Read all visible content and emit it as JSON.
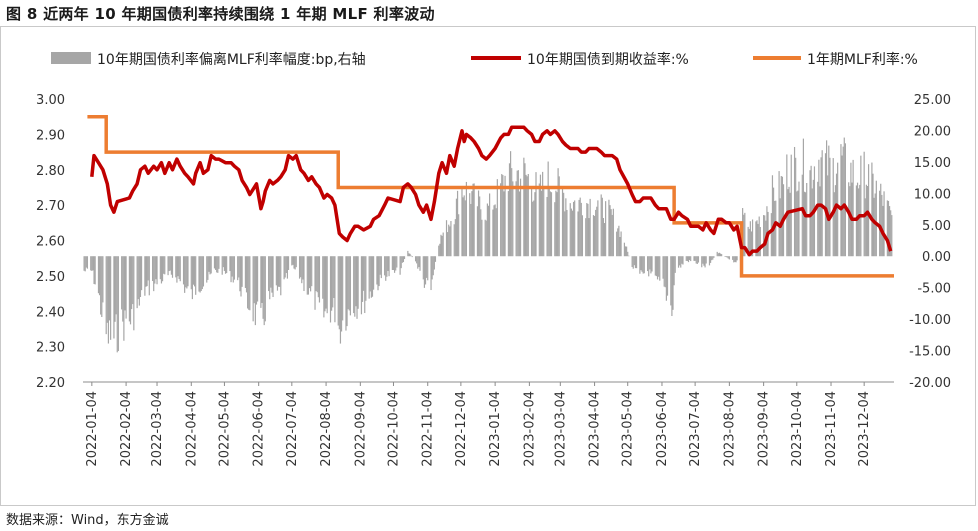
{
  "figure_title": "图 8  近两年 10 年期国债利率持续围绕 1 年期 MLF 利率波动",
  "source": "数据来源：Wind，东方金诚",
  "chart_data": {
    "type": "bar+line",
    "legend": [
      {
        "name": "10年期国债利率偏离MLF利率幅度:bp,右轴",
        "color": "#a6a6a6"
      },
      {
        "name": "10年期国债到期收益率:%",
        "color": "#c00000"
      },
      {
        "name": "1年期MLF利率:%",
        "color": "#ed7d31"
      }
    ],
    "legend_position": "top",
    "x_range": [
      "2021-12-27",
      "2023-12-31"
    ],
    "x_tick_labels": [
      "2022-01-04",
      "2022-02-04",
      "2022-03-04",
      "2022-04-04",
      "2022-05-04",
      "2022-06-04",
      "2022-07-04",
      "2022-08-04",
      "2022-09-04",
      "2022-10-04",
      "2022-11-04",
      "2022-12-04",
      "2023-01-04",
      "2023-02-04",
      "2023-03-04",
      "2023-04-04",
      "2023-05-04",
      "2023-06-04",
      "2023-07-04",
      "2023-08-04",
      "2023-09-04",
      "2023-10-04",
      "2023-11-04",
      "2023-12-04"
    ],
    "y_left": {
      "min": 2.2,
      "max": 3.0,
      "ticks": [
        "2.20",
        "2.30",
        "2.40",
        "2.50",
        "2.60",
        "2.70",
        "2.80",
        "2.90",
        "3.00"
      ]
    },
    "y_right": {
      "min": -20,
      "max": 25,
      "ticks": [
        "-20.00",
        "-15.00",
        "-10.00",
        "-5.00",
        "0.00",
        "5.00",
        "10.00",
        "15.00",
        "20.00",
        "25.00"
      ]
    },
    "yield_10y": [
      [
        "2022-01-04",
        2.78
      ],
      [
        "2022-01-06",
        2.84
      ],
      [
        "2022-01-10",
        2.82
      ],
      [
        "2022-01-14",
        2.8
      ],
      [
        "2022-01-18",
        2.76
      ],
      [
        "2022-01-21",
        2.7
      ],
      [
        "2022-01-24",
        2.68
      ],
      [
        "2022-01-27",
        2.71
      ],
      [
        "2022-02-07",
        2.72
      ],
      [
        "2022-02-10",
        2.74
      ],
      [
        "2022-02-14",
        2.76
      ],
      [
        "2022-02-17",
        2.8
      ],
      [
        "2022-02-21",
        2.81
      ],
      [
        "2022-02-24",
        2.79
      ],
      [
        "2022-03-01",
        2.81
      ],
      [
        "2022-03-04",
        2.8
      ],
      [
        "2022-03-08",
        2.82
      ],
      [
        "2022-03-11",
        2.79
      ],
      [
        "2022-03-15",
        2.82
      ],
      [
        "2022-03-18",
        2.8
      ],
      [
        "2022-03-22",
        2.83
      ],
      [
        "2022-03-25",
        2.81
      ],
      [
        "2022-03-29",
        2.79
      ],
      [
        "2022-04-01",
        2.78
      ],
      [
        "2022-04-06",
        2.76
      ],
      [
        "2022-04-08",
        2.79
      ],
      [
        "2022-04-12",
        2.82
      ],
      [
        "2022-04-15",
        2.79
      ],
      [
        "2022-04-19",
        2.8
      ],
      [
        "2022-04-22",
        2.84
      ],
      [
        "2022-04-26",
        2.83
      ],
      [
        "2022-04-29",
        2.83
      ],
      [
        "2022-05-05",
        2.82
      ],
      [
        "2022-05-10",
        2.82
      ],
      [
        "2022-05-13",
        2.81
      ],
      [
        "2022-05-17",
        2.8
      ],
      [
        "2022-05-20",
        2.77
      ],
      [
        "2022-05-24",
        2.75
      ],
      [
        "2022-05-27",
        2.73
      ],
      [
        "2022-05-31",
        2.75
      ],
      [
        "2022-06-02",
        2.76
      ],
      [
        "2022-06-06",
        2.69
      ],
      [
        "2022-06-08",
        2.71
      ],
      [
        "2022-06-10",
        2.74
      ],
      [
        "2022-06-14",
        2.77
      ],
      [
        "2022-06-17",
        2.76
      ],
      [
        "2022-06-21",
        2.77
      ],
      [
        "2022-06-24",
        2.78
      ],
      [
        "2022-06-28",
        2.8
      ],
      [
        "2022-07-01",
        2.84
      ],
      [
        "2022-07-05",
        2.83
      ],
      [
        "2022-07-08",
        2.84
      ],
      [
        "2022-07-12",
        2.8
      ],
      [
        "2022-07-15",
        2.79
      ],
      [
        "2022-07-19",
        2.77
      ],
      [
        "2022-07-22",
        2.78
      ],
      [
        "2022-07-26",
        2.76
      ],
      [
        "2022-07-29",
        2.75
      ],
      [
        "2022-08-02",
        2.72
      ],
      [
        "2022-08-05",
        2.73
      ],
      [
        "2022-08-09",
        2.72
      ],
      [
        "2022-08-12",
        2.7
      ],
      [
        "2022-08-16",
        2.62
      ],
      [
        "2022-08-19",
        2.61
      ],
      [
        "2022-08-23",
        2.6
      ],
      [
        "2022-08-26",
        2.62
      ],
      [
        "2022-08-30",
        2.64
      ],
      [
        "2022-09-02",
        2.64
      ],
      [
        "2022-09-07",
        2.63
      ],
      [
        "2022-09-13",
        2.64
      ],
      [
        "2022-09-16",
        2.66
      ],
      [
        "2022-09-21",
        2.67
      ],
      [
        "2022-09-26",
        2.7
      ],
      [
        "2022-09-29",
        2.72
      ],
      [
        "2022-10-10",
        2.71
      ],
      [
        "2022-10-13",
        2.75
      ],
      [
        "2022-10-17",
        2.76
      ],
      [
        "2022-10-20",
        2.75
      ],
      [
        "2022-10-24",
        2.73
      ],
      [
        "2022-10-27",
        2.7
      ],
      [
        "2022-10-31",
        2.68
      ],
      [
        "2022-11-03",
        2.7
      ],
      [
        "2022-11-07",
        2.66
      ],
      [
        "2022-11-10",
        2.71
      ],
      [
        "2022-11-14",
        2.79
      ],
      [
        "2022-11-17",
        2.82
      ],
      [
        "2022-11-21",
        2.79
      ],
      [
        "2022-11-24",
        2.84
      ],
      [
        "2022-11-28",
        2.81
      ],
      [
        "2022-12-01",
        2.86
      ],
      [
        "2022-12-05",
        2.91
      ],
      [
        "2022-12-07",
        2.88
      ],
      [
        "2022-12-09",
        2.9
      ],
      [
        "2022-12-13",
        2.89
      ],
      [
        "2022-12-16",
        2.88
      ],
      [
        "2022-12-20",
        2.86
      ],
      [
        "2022-12-23",
        2.84
      ],
      [
        "2022-12-27",
        2.83
      ],
      [
        "2022-12-30",
        2.84
      ],
      [
        "2023-01-04",
        2.86
      ],
      [
        "2023-01-09",
        2.89
      ],
      [
        "2023-01-12",
        2.9
      ],
      [
        "2023-01-16",
        2.9
      ],
      [
        "2023-01-19",
        2.92
      ],
      [
        "2023-01-30",
        2.92
      ],
      [
        "2023-02-02",
        2.91
      ],
      [
        "2023-02-06",
        2.9
      ],
      [
        "2023-02-09",
        2.88
      ],
      [
        "2023-02-13",
        2.88
      ],
      [
        "2023-02-16",
        2.9
      ],
      [
        "2023-02-20",
        2.91
      ],
      [
        "2023-02-23",
        2.9
      ],
      [
        "2023-02-27",
        2.91
      ],
      [
        "2023-03-02",
        2.9
      ],
      [
        "2023-03-06",
        2.88
      ],
      [
        "2023-03-09",
        2.87
      ],
      [
        "2023-03-13",
        2.86
      ],
      [
        "2023-03-16",
        2.86
      ],
      [
        "2023-03-20",
        2.86
      ],
      [
        "2023-03-23",
        2.85
      ],
      [
        "2023-03-27",
        2.85
      ],
      [
        "2023-03-30",
        2.86
      ],
      [
        "2023-04-03",
        2.86
      ],
      [
        "2023-04-06",
        2.86
      ],
      [
        "2023-04-10",
        2.85
      ],
      [
        "2023-04-13",
        2.84
      ],
      [
        "2023-04-17",
        2.84
      ],
      [
        "2023-04-20",
        2.84
      ],
      [
        "2023-04-24",
        2.83
      ],
      [
        "2023-04-27",
        2.8
      ],
      [
        "2023-05-04",
        2.76
      ],
      [
        "2023-05-08",
        2.73
      ],
      [
        "2023-05-11",
        2.71
      ],
      [
        "2023-05-15",
        2.71
      ],
      [
        "2023-05-18",
        2.72
      ],
      [
        "2023-05-22",
        2.72
      ],
      [
        "2023-05-25",
        2.72
      ],
      [
        "2023-05-29",
        2.7
      ],
      [
        "2023-06-01",
        2.69
      ],
      [
        "2023-06-05",
        2.69
      ],
      [
        "2023-06-08",
        2.69
      ],
      [
        "2023-06-12",
        2.66
      ],
      [
        "2023-06-15",
        2.66
      ],
      [
        "2023-06-19",
        2.68
      ],
      [
        "2023-06-22",
        2.67
      ],
      [
        "2023-06-27",
        2.66
      ],
      [
        "2023-06-30",
        2.64
      ],
      [
        "2023-07-04",
        2.64
      ],
      [
        "2023-07-07",
        2.64
      ],
      [
        "2023-07-11",
        2.63
      ],
      [
        "2023-07-14",
        2.65
      ],
      [
        "2023-07-18",
        2.63
      ],
      [
        "2023-07-21",
        2.62
      ],
      [
        "2023-07-25",
        2.66
      ],
      [
        "2023-07-28",
        2.66
      ],
      [
        "2023-08-01",
        2.65
      ],
      [
        "2023-08-04",
        2.65
      ],
      [
        "2023-08-08",
        2.63
      ],
      [
        "2023-08-11",
        2.64
      ],
      [
        "2023-08-15",
        2.58
      ],
      [
        "2023-08-18",
        2.58
      ],
      [
        "2023-08-22",
        2.56
      ],
      [
        "2023-08-25",
        2.57
      ],
      [
        "2023-08-29",
        2.57
      ],
      [
        "2023-09-01",
        2.58
      ],
      [
        "2023-09-05",
        2.59
      ],
      [
        "2023-09-08",
        2.62
      ],
      [
        "2023-09-12",
        2.63
      ],
      [
        "2023-09-15",
        2.65
      ],
      [
        "2023-09-19",
        2.64
      ],
      [
        "2023-09-22",
        2.66
      ],
      [
        "2023-09-26",
        2.68
      ],
      [
        "2023-10-09",
        2.69
      ],
      [
        "2023-10-12",
        2.67
      ],
      [
        "2023-10-16",
        2.67
      ],
      [
        "2023-10-19",
        2.68
      ],
      [
        "2023-10-23",
        2.7
      ],
      [
        "2023-10-26",
        2.7
      ],
      [
        "2023-10-30",
        2.69
      ],
      [
        "2023-11-02",
        2.66
      ],
      [
        "2023-11-06",
        2.68
      ],
      [
        "2023-11-09",
        2.7
      ],
      [
        "2023-11-13",
        2.69
      ],
      [
        "2023-11-16",
        2.7
      ],
      [
        "2023-11-20",
        2.68
      ],
      [
        "2023-11-23",
        2.66
      ],
      [
        "2023-11-27",
        2.66
      ],
      [
        "2023-11-30",
        2.67
      ],
      [
        "2023-12-04",
        2.67
      ],
      [
        "2023-12-07",
        2.68
      ],
      [
        "2023-12-11",
        2.66
      ],
      [
        "2023-12-14",
        2.65
      ],
      [
        "2023-12-18",
        2.64
      ],
      [
        "2023-12-21",
        2.62
      ],
      [
        "2023-12-25",
        2.6
      ],
      [
        "2023-12-28",
        2.57
      ]
    ],
    "mlf_1y": [
      [
        "2021-12-31",
        2.95
      ],
      [
        "2022-01-17",
        2.85
      ],
      [
        "2022-08-15",
        2.75
      ],
      [
        "2023-06-15",
        2.65
      ],
      [
        "2023-08-15",
        2.5
      ],
      [
        "2023-12-31",
        2.5
      ]
    ],
    "bar_series_name": "10年期国债利率偏离MLF利率幅度:bp,右轴",
    "bar_envelope_bp": [
      [
        "2021-12-28",
        -3
      ],
      [
        "2022-01-04",
        -3
      ],
      [
        "2022-01-10",
        -8
      ],
      [
        "2022-01-17",
        -16
      ],
      [
        "2022-01-24",
        -17
      ],
      [
        "2022-01-31",
        -14
      ],
      [
        "2022-02-07",
        -13
      ],
      [
        "2022-02-14",
        -11
      ],
      [
        "2022-02-21",
        -7
      ],
      [
        "2022-02-28",
        -6
      ],
      [
        "2022-03-07",
        -5
      ],
      [
        "2022-03-14",
        -4
      ],
      [
        "2022-03-21",
        -4
      ],
      [
        "2022-03-28",
        -6
      ],
      [
        "2022-04-04",
        -8
      ],
      [
        "2022-04-11",
        -6
      ],
      [
        "2022-04-18",
        -5
      ],
      [
        "2022-04-25",
        -3
      ],
      [
        "2022-05-02",
        -3
      ],
      [
        "2022-05-09",
        -4
      ],
      [
        "2022-05-16",
        -5
      ],
      [
        "2022-05-23",
        -9
      ],
      [
        "2022-05-30",
        -11
      ],
      [
        "2022-06-06",
        -14
      ],
      [
        "2022-06-13",
        -9
      ],
      [
        "2022-06-20",
        -8
      ],
      [
        "2022-06-27",
        -6
      ],
      [
        "2022-07-04",
        -2
      ],
      [
        "2022-07-11",
        -4
      ],
      [
        "2022-07-18",
        -7
      ],
      [
        "2022-07-25",
        -9
      ],
      [
        "2022-08-01",
        -12
      ],
      [
        "2022-08-08",
        -11
      ],
      [
        "2022-08-14",
        -11
      ],
      [
        "2022-08-16",
        -15
      ],
      [
        "2022-08-22",
        -12
      ],
      [
        "2022-08-29",
        -10
      ],
      [
        "2022-09-05",
        -10
      ],
      [
        "2022-09-12",
        -8
      ],
      [
        "2022-09-19",
        -6
      ],
      [
        "2022-09-26",
        -4
      ],
      [
        "2022-10-10",
        -3
      ],
      [
        "2022-10-17",
        1
      ],
      [
        "2022-10-24",
        -1
      ],
      [
        "2022-10-31",
        -5
      ],
      [
        "2022-11-07",
        -7
      ],
      [
        "2022-11-14",
        3
      ],
      [
        "2022-11-21",
        6
      ],
      [
        "2022-11-28",
        9
      ],
      [
        "2022-12-05",
        14
      ],
      [
        "2022-12-12",
        13
      ],
      [
        "2022-12-19",
        11
      ],
      [
        "2022-12-26",
        9
      ],
      [
        "2023-01-02",
        11
      ],
      [
        "2023-01-09",
        14
      ],
      [
        "2023-01-16",
        17
      ],
      [
        "2023-01-30",
        17
      ],
      [
        "2023-02-06",
        15
      ],
      [
        "2023-02-13",
        13
      ],
      [
        "2023-02-20",
        16
      ],
      [
        "2023-02-27",
        15
      ],
      [
        "2023-03-06",
        13
      ],
      [
        "2023-03-13",
        11
      ],
      [
        "2023-03-20",
        11
      ],
      [
        "2023-03-27",
        11
      ],
      [
        "2023-04-03",
        11
      ],
      [
        "2023-04-10",
        10
      ],
      [
        "2023-04-17",
        9
      ],
      [
        "2023-04-24",
        7
      ],
      [
        "2023-05-01",
        3
      ],
      [
        "2023-05-08",
        -2
      ],
      [
        "2023-05-15",
        -4
      ],
      [
        "2023-05-22",
        -3
      ],
      [
        "2023-05-29",
        -5
      ],
      [
        "2023-06-05",
        -6
      ],
      [
        "2023-06-12",
        -10
      ],
      [
        "2023-06-14",
        -10
      ],
      [
        "2023-06-16",
        -3
      ],
      [
        "2023-06-26",
        -1
      ],
      [
        "2023-07-03",
        -1
      ],
      [
        "2023-07-10",
        -2
      ],
      [
        "2023-07-17",
        -2
      ],
      [
        "2023-07-24",
        1
      ],
      [
        "2023-07-31",
        0
      ],
      [
        "2023-08-07",
        -1
      ],
      [
        "2023-08-14",
        -1
      ],
      [
        "2023-08-16",
        8
      ],
      [
        "2023-08-22",
        6
      ],
      [
        "2023-08-29",
        7
      ],
      [
        "2023-09-05",
        9
      ],
      [
        "2023-09-12",
        13
      ],
      [
        "2023-09-19",
        14
      ],
      [
        "2023-09-26",
        18
      ],
      [
        "2023-10-09",
        19
      ],
      [
        "2023-10-16",
        17
      ],
      [
        "2023-10-23",
        20
      ],
      [
        "2023-10-30",
        19
      ],
      [
        "2023-11-06",
        18
      ],
      [
        "2023-11-13",
        20
      ],
      [
        "2023-11-20",
        18
      ],
      [
        "2023-11-27",
        16
      ],
      [
        "2023-12-04",
        17
      ],
      [
        "2023-12-11",
        15
      ],
      [
        "2023-12-18",
        13
      ],
      [
        "2023-12-25",
        10
      ],
      [
        "2023-12-31",
        7
      ]
    ]
  }
}
